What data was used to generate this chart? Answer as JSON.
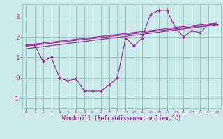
{
  "bg_color": "#cceaea",
  "grid_color": "#99cccc",
  "line_color": "#993399",
  "xlabel": "Windchill (Refroidissement éolien,°C)",
  "xlim": [
    -0.5,
    23.5
  ],
  "ylim": [
    -1.5,
    3.6
  ],
  "yticks": [
    -1,
    0,
    1,
    2,
    3
  ],
  "xticks": [
    0,
    1,
    2,
    3,
    4,
    5,
    6,
    7,
    8,
    9,
    10,
    11,
    12,
    13,
    14,
    15,
    16,
    17,
    18,
    19,
    20,
    21,
    22,
    23
  ],
  "line1_x": [
    0,
    1,
    2,
    3,
    4,
    5,
    6,
    7,
    8,
    9,
    10,
    11,
    12,
    13,
    14,
    15,
    16,
    17,
    18,
    19,
    20,
    21,
    22,
    23
  ],
  "line1_y": [
    1.6,
    1.6,
    0.8,
    1.0,
    0.0,
    -0.15,
    -0.05,
    -0.65,
    -0.65,
    -0.65,
    -0.35,
    0.0,
    1.95,
    1.55,
    1.95,
    3.1,
    3.3,
    3.3,
    2.45,
    2.0,
    2.3,
    2.2,
    2.6,
    2.6
  ],
  "line2_x": [
    0,
    23
  ],
  "line2_y": [
    1.55,
    2.62
  ],
  "line3_x": [
    0,
    23
  ],
  "line3_y": [
    1.42,
    2.58
  ],
  "line4_x": [
    0,
    23
  ],
  "line4_y": [
    1.6,
    2.68
  ]
}
